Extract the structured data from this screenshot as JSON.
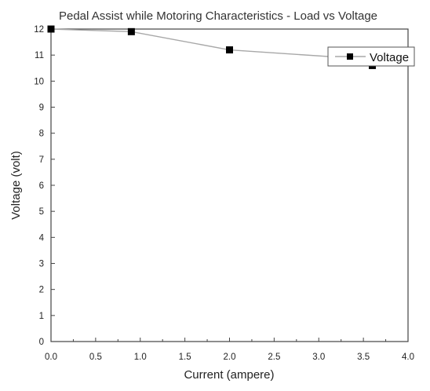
{
  "chart_data": {
    "type": "line",
    "title": "Pedal Assist while Motoring Characteristics - Load vs Voltage",
    "xlabel": "Current (ampere)",
    "ylabel": "Voltage (volt)",
    "xlim": [
      0,
      4
    ],
    "ylim": [
      0,
      12
    ],
    "x_ticks": [
      "0.0",
      "0.5",
      "1.0",
      "1.5",
      "2.0",
      "2.5",
      "3.0",
      "3.5",
      "4.0"
    ],
    "y_ticks": [
      "0",
      "1",
      "2",
      "3",
      "4",
      "5",
      "6",
      "7",
      "8",
      "9",
      "10",
      "11",
      "12"
    ],
    "grid": false,
    "legend_position": "top-right",
    "series": [
      {
        "name": "Voltage",
        "marker": "square",
        "color": "#000000",
        "line_color": "#a8a8a8",
        "x": [
          0,
          0.9,
          2.0,
          3.3,
          3.6
        ],
        "y": [
          12,
          11.9,
          11.2,
          10.9,
          10.6
        ]
      }
    ]
  }
}
